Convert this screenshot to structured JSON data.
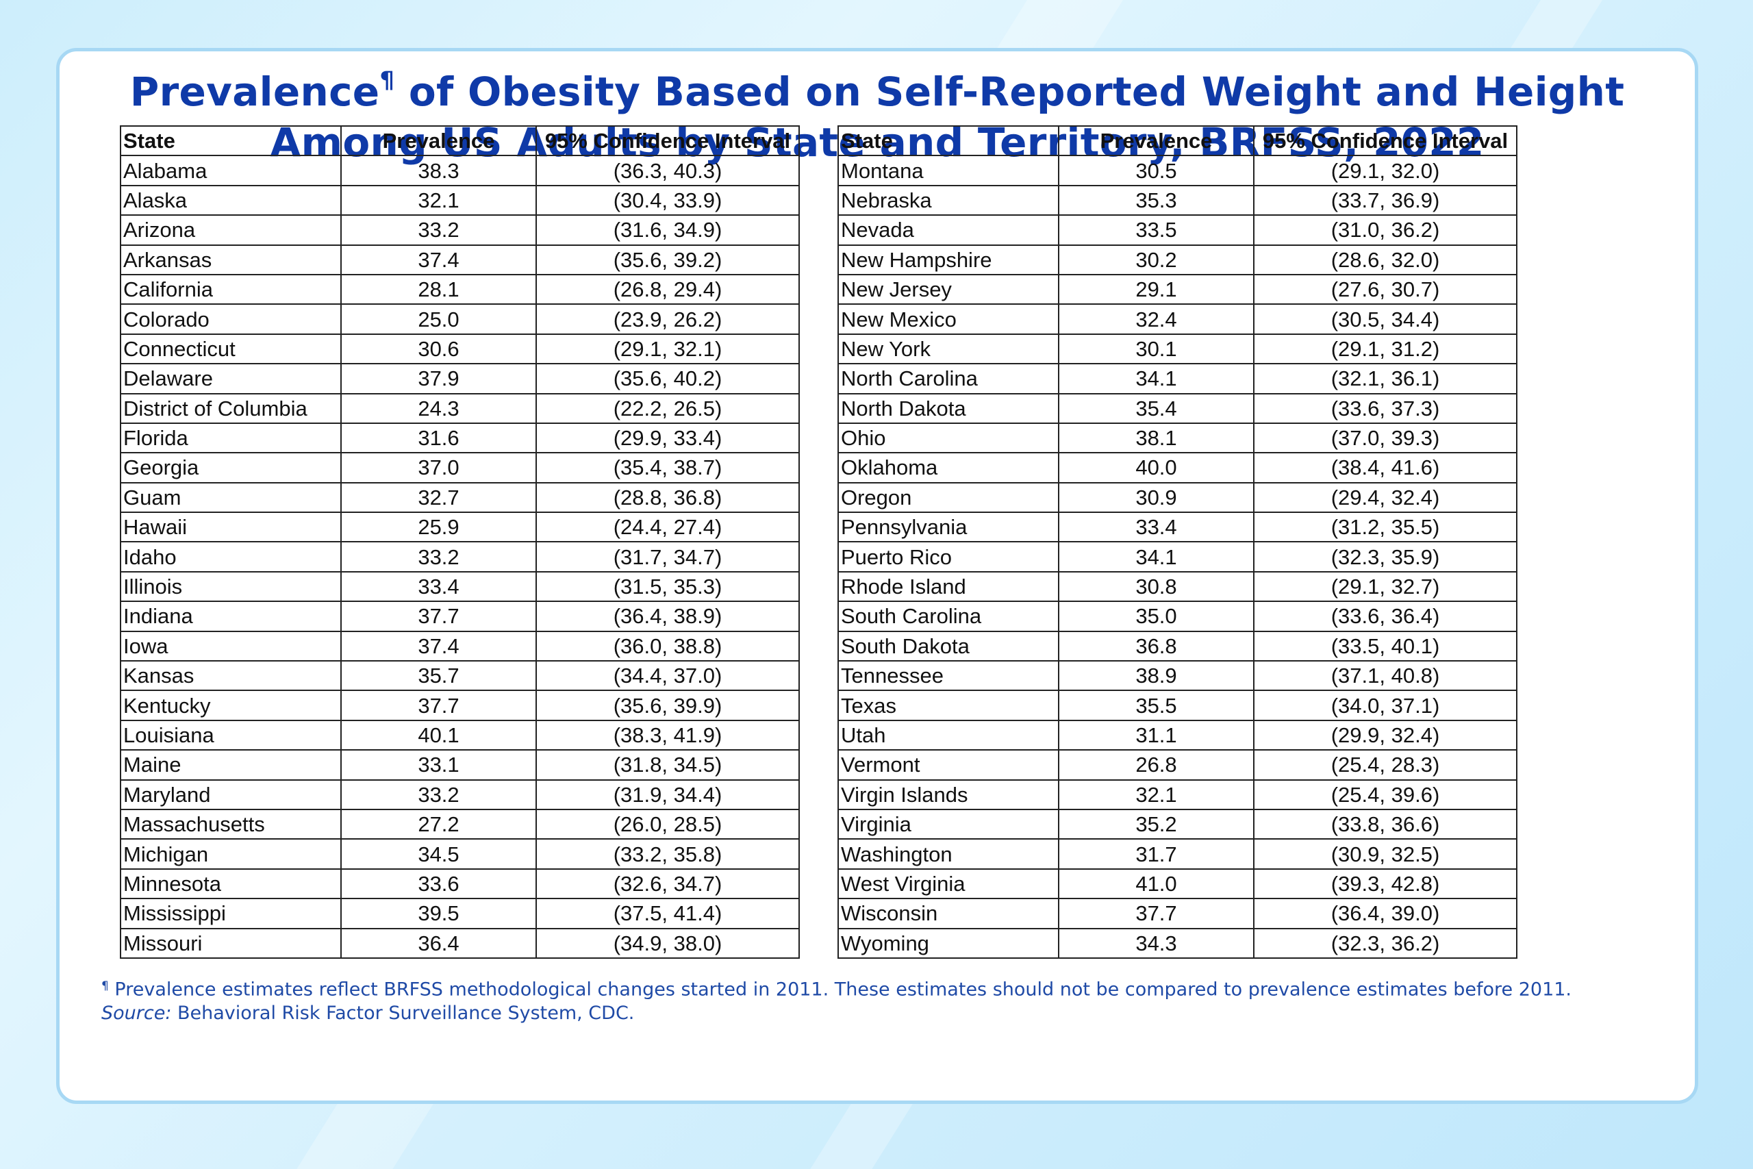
{
  "title": {
    "line1_pre": "Prevalence",
    "line1_mark": "¶",
    "line1_post": " of Obesity Based on Self-Reported Weight and Height",
    "line2": "Among US Adults by State and Territory, BRFSS, 2022"
  },
  "columns": {
    "state": "State",
    "prevalence": "Prevalence",
    "ci": "95% Confidence Interval"
  },
  "table_left": [
    {
      "state": "Alabama",
      "prevalence": "38.3",
      "ci": "(36.3, 40.3)"
    },
    {
      "state": "Alaska",
      "prevalence": "32.1",
      "ci": "(30.4, 33.9)"
    },
    {
      "state": "Arizona",
      "prevalence": "33.2",
      "ci": "(31.6, 34.9)"
    },
    {
      "state": "Arkansas",
      "prevalence": "37.4",
      "ci": "(35.6, 39.2)"
    },
    {
      "state": "California",
      "prevalence": "28.1",
      "ci": "(26.8, 29.4)"
    },
    {
      "state": "Colorado",
      "prevalence": "25.0",
      "ci": "(23.9, 26.2)"
    },
    {
      "state": "Connecticut",
      "prevalence": "30.6",
      "ci": "(29.1, 32.1)"
    },
    {
      "state": "Delaware",
      "prevalence": "37.9",
      "ci": "(35.6, 40.2)"
    },
    {
      "state": "District of Columbia",
      "prevalence": "24.3",
      "ci": "(22.2, 26.5)"
    },
    {
      "state": "Florida",
      "prevalence": "31.6",
      "ci": "(29.9, 33.4)"
    },
    {
      "state": "Georgia",
      "prevalence": "37.0",
      "ci": "(35.4, 38.7)"
    },
    {
      "state": "Guam",
      "prevalence": "32.7",
      "ci": "(28.8, 36.8)"
    },
    {
      "state": "Hawaii",
      "prevalence": "25.9",
      "ci": "(24.4, 27.4)"
    },
    {
      "state": "Idaho",
      "prevalence": "33.2",
      "ci": "(31.7, 34.7)"
    },
    {
      "state": "Illinois",
      "prevalence": "33.4",
      "ci": "(31.5, 35.3)"
    },
    {
      "state": "Indiana",
      "prevalence": "37.7",
      "ci": "(36.4, 38.9)"
    },
    {
      "state": "Iowa",
      "prevalence": "37.4",
      "ci": "(36.0, 38.8)"
    },
    {
      "state": "Kansas",
      "prevalence": "35.7",
      "ci": "(34.4, 37.0)"
    },
    {
      "state": "Kentucky",
      "prevalence": "37.7",
      "ci": "(35.6, 39.9)"
    },
    {
      "state": "Louisiana",
      "prevalence": "40.1",
      "ci": "(38.3, 41.9)"
    },
    {
      "state": "Maine",
      "prevalence": "33.1",
      "ci": "(31.8, 34.5)"
    },
    {
      "state": "Maryland",
      "prevalence": "33.2",
      "ci": "(31.9, 34.4)"
    },
    {
      "state": "Massachusetts",
      "prevalence": "27.2",
      "ci": "(26.0, 28.5)"
    },
    {
      "state": "Michigan",
      "prevalence": "34.5",
      "ci": "(33.2, 35.8)"
    },
    {
      "state": "Minnesota",
      "prevalence": "33.6",
      "ci": "(32.6, 34.7)"
    },
    {
      "state": "Mississippi",
      "prevalence": "39.5",
      "ci": "(37.5, 41.4)"
    },
    {
      "state": "Missouri",
      "prevalence": "36.4",
      "ci": "(34.9, 38.0)"
    }
  ],
  "table_right": [
    {
      "state": "Montana",
      "prevalence": "30.5",
      "ci": "(29.1, 32.0)"
    },
    {
      "state": "Nebraska",
      "prevalence": "35.3",
      "ci": "(33.7, 36.9)"
    },
    {
      "state": "Nevada",
      "prevalence": "33.5",
      "ci": "(31.0, 36.2)"
    },
    {
      "state": "New Hampshire",
      "prevalence": "30.2",
      "ci": "(28.6, 32.0)"
    },
    {
      "state": "New Jersey",
      "prevalence": "29.1",
      "ci": "(27.6, 30.7)"
    },
    {
      "state": "New Mexico",
      "prevalence": "32.4",
      "ci": "(30.5, 34.4)"
    },
    {
      "state": "New York",
      "prevalence": "30.1",
      "ci": "(29.1, 31.2)"
    },
    {
      "state": "North Carolina",
      "prevalence": "34.1",
      "ci": "(32.1, 36.1)"
    },
    {
      "state": "North Dakota",
      "prevalence": "35.4",
      "ci": "(33.6, 37.3)"
    },
    {
      "state": "Ohio",
      "prevalence": "38.1",
      "ci": "(37.0, 39.3)"
    },
    {
      "state": "Oklahoma",
      "prevalence": "40.0",
      "ci": "(38.4, 41.6)"
    },
    {
      "state": "Oregon",
      "prevalence": "30.9",
      "ci": "(29.4, 32.4)"
    },
    {
      "state": "Pennsylvania",
      "prevalence": "33.4",
      "ci": "(31.2, 35.5)"
    },
    {
      "state": "Puerto Rico",
      "prevalence": "34.1",
      "ci": "(32.3, 35.9)"
    },
    {
      "state": "Rhode Island",
      "prevalence": "30.8",
      "ci": "(29.1, 32.7)"
    },
    {
      "state": "South Carolina",
      "prevalence": "35.0",
      "ci": "(33.6, 36.4)"
    },
    {
      "state": "South Dakota",
      "prevalence": "36.8",
      "ci": "(33.5, 40.1)"
    },
    {
      "state": "Tennessee",
      "prevalence": "38.9",
      "ci": "(37.1, 40.8)"
    },
    {
      "state": "Texas",
      "prevalence": "35.5",
      "ci": "(34.0, 37.1)"
    },
    {
      "state": "Utah",
      "prevalence": "31.1",
      "ci": "(29.9, 32.4)"
    },
    {
      "state": "Vermont",
      "prevalence": "26.8",
      "ci": "(25.4, 28.3)"
    },
    {
      "state": "Virgin Islands",
      "prevalence": "32.1",
      "ci": "(25.4, 39.6)"
    },
    {
      "state": "Virginia",
      "prevalence": "35.2",
      "ci": "(33.8, 36.6)"
    },
    {
      "state": "Washington",
      "prevalence": "31.7",
      "ci": "(30.9, 32.5)"
    },
    {
      "state": "West Virginia",
      "prevalence": "41.0",
      "ci": "(39.3, 42.8)"
    },
    {
      "state": "Wisconsin",
      "prevalence": "37.7",
      "ci": "(36.4, 39.0)"
    },
    {
      "state": "Wyoming",
      "prevalence": "34.3",
      "ci": "(32.3, 36.2)"
    }
  ],
  "footnote": {
    "mark": "¶",
    "text": " Prevalence estimates reflect BRFSS methodological changes started in 2011. These estimates should not be compared to prevalence estimates before 2011.",
    "source_label": "Source:",
    "source_text": " Behavioral Risk Factor Surveillance System, CDC."
  },
  "colors": {
    "title": "#0f3aa8",
    "footnote": "#1f4aa6",
    "card_border": "#a7d8f4",
    "background": "#d4f0fd"
  }
}
